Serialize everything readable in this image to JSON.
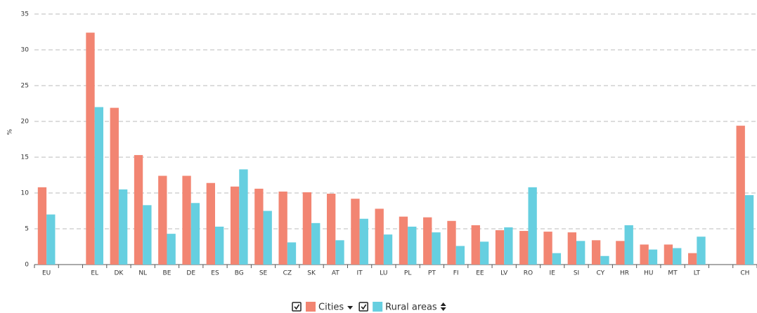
{
  "chart_data": {
    "type": "bar",
    "y_label": "%",
    "categories": [
      "EU",
      null,
      "EL",
      "DK",
      "NL",
      "BE",
      "DE",
      "ES",
      "BG",
      "SE",
      "CZ",
      "SK",
      "AT",
      "IT",
      "LU",
      "PL",
      "PT",
      "FI",
      "EE",
      "LV",
      "RO",
      "IE",
      "SI",
      "CY",
      "HR",
      "HU",
      "MT",
      "LT",
      null,
      "CH"
    ],
    "series": [
      {
        "name": "Cities",
        "color": "#f28572",
        "values": [
          10.8,
          null,
          32.4,
          21.9,
          15.3,
          12.4,
          12.4,
          11.4,
          10.9,
          10.6,
          10.2,
          10.1,
          9.9,
          9.2,
          7.8,
          6.7,
          6.6,
          6.1,
          5.5,
          4.8,
          4.7,
          4.6,
          4.5,
          3.4,
          3.3,
          2.8,
          2.8,
          1.6,
          null,
          19.4
        ]
      },
      {
        "name": "Rural areas",
        "color": "#66cfe0",
        "values": [
          7.0,
          null,
          22.0,
          10.5,
          8.3,
          4.3,
          8.6,
          5.3,
          13.3,
          7.5,
          3.1,
          5.8,
          3.4,
          6.4,
          4.2,
          5.3,
          4.5,
          2.6,
          3.2,
          5.2,
          10.8,
          1.6,
          3.3,
          1.2,
          5.5,
          2.1,
          2.3,
          3.9,
          null,
          9.7
        ]
      }
    ],
    "ylim": [
      0,
      35
    ],
    "yticks": [
      0,
      5,
      10,
      15,
      20,
      25,
      30,
      35
    ],
    "grid": true,
    "legend": "bottom"
  }
}
